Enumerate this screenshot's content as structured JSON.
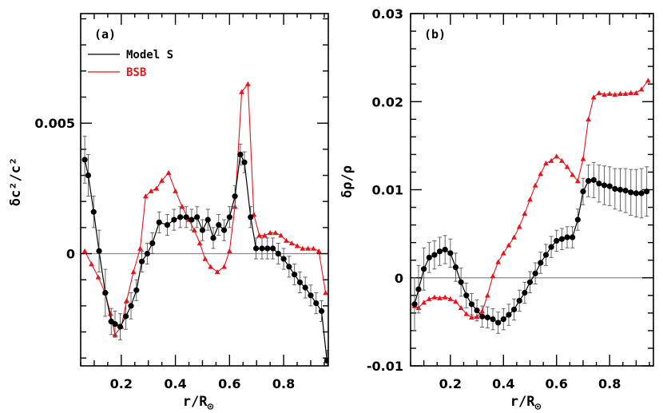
{
  "colors": {
    "model_s": "#000000",
    "bsb": "#e8141b",
    "zero_line": "#8a8a8a"
  },
  "chart_data": [
    {
      "type": "line",
      "panel_label": "(a)",
      "xlabel": "r/R",
      "xlabel_sub": "⊙",
      "ylabel": "δc²/c²",
      "xlim": [
        0.05,
        0.965
      ],
      "ylim": [
        -0.0043,
        0.0092
      ],
      "xticks": [
        0.2,
        0.4,
        0.6,
        0.8
      ],
      "xtick_labels": [
        "0.2",
        "0.4",
        "0.6",
        "0.8"
      ],
      "yticks": [
        0,
        0.005
      ],
      "ytick_labels": [
        "0",
        "0.005"
      ],
      "zero_line": true,
      "legend": {
        "placement": "top-left",
        "entries": [
          "Model S",
          "BSB"
        ]
      },
      "series": [
        {
          "name": "Model S",
          "color": "#000000",
          "marker": "circle",
          "x": [
            0.065,
            0.078,
            0.098,
            0.118,
            0.141,
            0.163,
            0.177,
            0.196,
            0.217,
            0.236,
            0.256,
            0.276,
            0.296,
            0.315,
            0.34,
            0.37,
            0.395,
            0.418,
            0.44,
            0.46,
            0.48,
            0.5,
            0.52,
            0.54,
            0.56,
            0.58,
            0.6,
            0.62,
            0.64,
            0.655,
            0.678,
            0.698,
            0.72,
            0.74,
            0.76,
            0.78,
            0.8,
            0.82,
            0.84,
            0.86,
            0.88,
            0.9,
            0.92,
            0.94,
            0.96
          ],
          "y": [
            0.0036,
            0.003,
            0.0016,
            0.0001,
            -0.0015,
            -0.0026,
            -0.0027,
            -0.0028,
            -0.0024,
            -0.002,
            -0.0014,
            -0.0003,
            0.0,
            0.0004,
            0.0012,
            0.0011,
            0.0013,
            0.0014,
            0.0014,
            0.0013,
            0.0014,
            0.0009,
            0.0013,
            0.0006,
            0.0011,
            0.0009,
            0.0014,
            0.0022,
            0.0038,
            0.0035,
            0.0014,
            0.0002,
            0.0002,
            0.0002,
            0.0002,
            0.0,
            -0.0002,
            -0.0005,
            -0.0008,
            -0.0011,
            -0.0013,
            -0.0016,
            -0.0019,
            -0.0022,
            -0.0041
          ],
          "err": [
            0.0009,
            0.0008,
            0.0006,
            0.0008,
            0.0009,
            0.0005,
            0.0005,
            0.0005,
            0.0005,
            0.0005,
            0.0004,
            0.0004,
            0.0004,
            0.0004,
            0.0004,
            0.0004,
            0.0004,
            0.0004,
            0.0004,
            0.0004,
            0.0004,
            0.0004,
            0.0004,
            0.0004,
            0.0004,
            0.0004,
            0.0004,
            0.0004,
            0.0004,
            0.0004,
            0.0004,
            0.0004,
            0.0004,
            0.0004,
            0.0004,
            0.0004,
            0.0004,
            0.0004,
            0.0004,
            0.0004,
            0.0004,
            0.0004,
            0.0004,
            0.0004,
            0.0004
          ],
          "xerr": [
            0.005,
            0.006,
            0.008,
            0.01,
            0.012,
            0.012,
            0.012,
            0.012,
            0.01,
            0.01,
            0.01,
            0.01,
            0.008,
            0.008,
            0.008,
            0.008,
            0.008,
            0.008,
            0.008,
            0.008,
            0.008,
            0.008,
            0.008,
            0.008,
            0.008,
            0.008,
            0.008,
            0.008,
            0.008,
            0.008,
            0.008,
            0.008,
            0.008,
            0.008,
            0.008,
            0.008,
            0.008,
            0.008,
            0.008,
            0.008,
            0.008,
            0.008,
            0.008,
            0.008,
            0.008
          ]
        },
        {
          "name": "BSB",
          "color": "#e8141b",
          "marker": "triangle",
          "x": [
            0.065,
            0.09,
            0.115,
            0.14,
            0.16,
            0.177,
            0.2,
            0.22,
            0.245,
            0.27,
            0.29,
            0.31,
            0.33,
            0.35,
            0.375,
            0.4,
            0.425,
            0.45,
            0.47,
            0.49,
            0.51,
            0.53,
            0.555,
            0.58,
            0.6,
            0.62,
            0.645,
            0.668,
            0.69,
            0.71,
            0.73,
            0.75,
            0.77,
            0.79,
            0.81,
            0.83,
            0.85,
            0.87,
            0.89,
            0.91,
            0.93,
            0.955
          ],
          "y": [
            0.0001,
            -0.0004,
            -0.0009,
            -0.0015,
            -0.0023,
            -0.0031,
            -0.0028,
            -0.0018,
            -0.0007,
            0.0002,
            0.0022,
            0.0024,
            0.0025,
            0.0028,
            0.0031,
            0.0024,
            0.0018,
            0.0013,
            0.0009,
            0.0004,
            -0.0002,
            -0.0005,
            -0.0007,
            -0.0005,
            0.0001,
            0.0018,
            0.0062,
            0.0065,
            0.0015,
            0.0007,
            0.0007,
            0.0008,
            0.0008,
            0.0007,
            0.0005,
            0.0004,
            0.0003,
            0.0002,
            0.0002,
            0.0002,
            0.0001,
            -0.0015
          ]
        }
      ]
    },
    {
      "type": "line",
      "panel_label": "(b)",
      "xlabel": "r/R",
      "xlabel_sub": "⊙",
      "ylabel": "δρ/ρ",
      "xlim": [
        0.05,
        0.965
      ],
      "ylim": [
        -0.01,
        0.03
      ],
      "xticks": [
        0.2,
        0.4,
        0.6,
        0.8
      ],
      "xtick_labels": [
        "0.2",
        "0.4",
        "0.6",
        "0.8"
      ],
      "yticks": [
        -0.01,
        0,
        0.01,
        0.02,
        0.03
      ],
      "ytick_labels": [
        "-0.01",
        "0",
        "0.01",
        "0.02",
        "0.03"
      ],
      "zero_line": true,
      "series": [
        {
          "name": "Model S",
          "color": "#000000",
          "marker": "circle",
          "x": [
            0.065,
            0.08,
            0.1,
            0.12,
            0.14,
            0.16,
            0.18,
            0.2,
            0.22,
            0.24,
            0.26,
            0.28,
            0.3,
            0.32,
            0.34,
            0.36,
            0.38,
            0.4,
            0.42,
            0.44,
            0.46,
            0.48,
            0.5,
            0.52,
            0.54,
            0.56,
            0.58,
            0.6,
            0.62,
            0.64,
            0.66,
            0.68,
            0.7,
            0.72,
            0.74,
            0.76,
            0.78,
            0.8,
            0.82,
            0.84,
            0.86,
            0.88,
            0.9,
            0.92,
            0.94
          ],
          "y": [
            -0.003,
            -0.0013,
            0.001,
            0.0023,
            0.0026,
            0.003,
            0.0032,
            0.0028,
            0.0012,
            -0.0005,
            -0.002,
            -0.003,
            -0.0037,
            -0.0044,
            -0.0045,
            -0.0047,
            -0.0051,
            -0.0047,
            -0.0042,
            -0.0036,
            -0.0026,
            -0.0017,
            -0.0005,
            0.0005,
            0.0017,
            0.0026,
            0.0035,
            0.0042,
            0.0044,
            0.0046,
            0.0046,
            0.0066,
            0.0098,
            0.011,
            0.0111,
            0.0107,
            0.0105,
            0.0104,
            0.0101,
            0.01,
            0.0099,
            0.0097,
            0.0096,
            0.0096,
            0.0098
          ],
          "err": [
            0.003,
            0.0027,
            0.0024,
            0.0017,
            0.0016,
            0.0016,
            0.0016,
            0.0016,
            0.0016,
            0.0016,
            0.0014,
            0.0012,
            0.0012,
            0.0012,
            0.0012,
            0.0012,
            0.0012,
            0.0012,
            0.0012,
            0.0012,
            0.0012,
            0.0012,
            0.0012,
            0.0012,
            0.0012,
            0.0012,
            0.0012,
            0.0012,
            0.0012,
            0.0012,
            0.0012,
            0.0012,
            0.0015,
            0.0018,
            0.002,
            0.0021,
            0.0022,
            0.0022,
            0.0023,
            0.0024,
            0.0025,
            0.0026,
            0.0027,
            0.0028,
            0.0028
          ]
        },
        {
          "name": "BSB",
          "color": "#e8141b",
          "marker": "triangle",
          "x": [
            0.065,
            0.08,
            0.1,
            0.12,
            0.14,
            0.16,
            0.18,
            0.2,
            0.22,
            0.24,
            0.26,
            0.28,
            0.3,
            0.32,
            0.34,
            0.36,
            0.38,
            0.4,
            0.42,
            0.44,
            0.46,
            0.48,
            0.5,
            0.52,
            0.54,
            0.56,
            0.58,
            0.6,
            0.62,
            0.64,
            0.66,
            0.68,
            0.7,
            0.72,
            0.74,
            0.76,
            0.78,
            0.8,
            0.82,
            0.84,
            0.86,
            0.88,
            0.9,
            0.92,
            0.945
          ],
          "y": [
            -0.0032,
            -0.0034,
            -0.0028,
            -0.0024,
            -0.0022,
            -0.0023,
            -0.0022,
            -0.0024,
            -0.0027,
            -0.0034,
            -0.0041,
            -0.0045,
            -0.0044,
            -0.0038,
            -0.002,
            0.0002,
            0.0018,
            0.0028,
            0.0037,
            0.0046,
            0.0058,
            0.0073,
            0.0089,
            0.0105,
            0.0118,
            0.013,
            0.0133,
            0.0138,
            0.0133,
            0.0126,
            0.0117,
            0.011,
            0.0135,
            0.018,
            0.0205,
            0.021,
            0.0208,
            0.0209,
            0.0208,
            0.0209,
            0.0209,
            0.021,
            0.021,
            0.0214,
            0.0224
          ]
        }
      ]
    }
  ]
}
